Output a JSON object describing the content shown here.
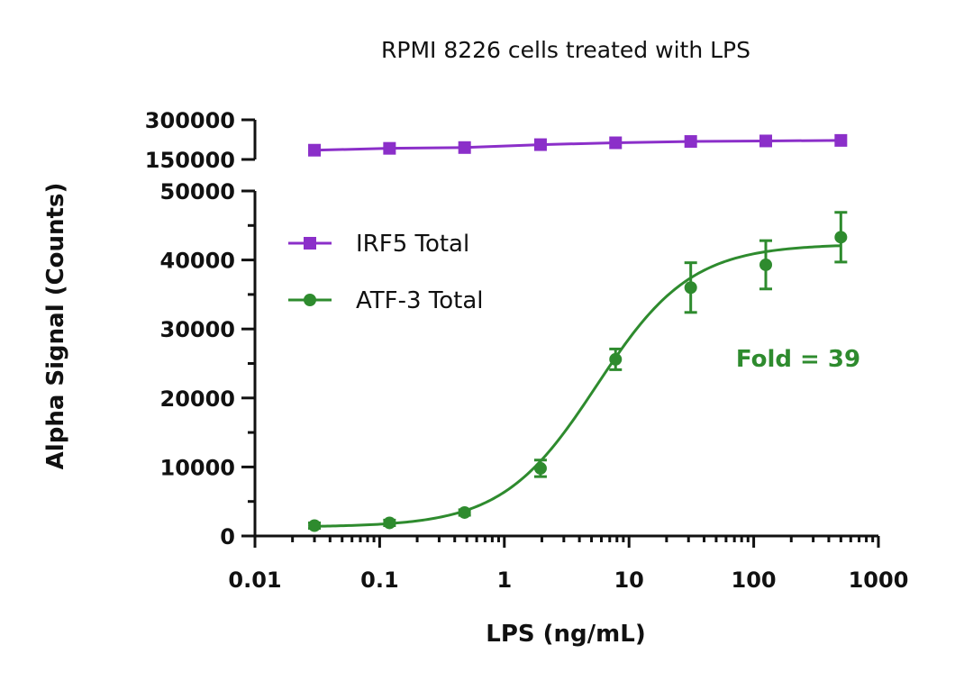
{
  "chart_data": {
    "type": "scatter",
    "title": "RPMI 8226 cells treated with LPS",
    "xlabel": "LPS (ng/mL)",
    "ylabel": "Alpha Signal (Counts)",
    "x_scale": "log",
    "xlim": [
      0.01,
      1000
    ],
    "x_ticks": [
      "0.01",
      "0.1",
      "1",
      "10",
      "100",
      "1000"
    ],
    "y_axis_segments": [
      {
        "ylim": [
          0,
          50000
        ],
        "ticks": [
          "0",
          "10000",
          "20000",
          "30000",
          "40000",
          "50000"
        ]
      },
      {
        "ylim": [
          150000,
          300000
        ],
        "ticks": [
          "150000",
          "300000"
        ]
      }
    ],
    "grid": false,
    "legend_position": "upper-left",
    "series": [
      {
        "name": "IRF5 Total",
        "color": "#8b2fc9",
        "marker": "square",
        "x": [
          0.03,
          0.12,
          0.48,
          1.95,
          7.8,
          31.25,
          125,
          500
        ],
        "y": [
          185000,
          192000,
          195000,
          206000,
          213000,
          218000,
          220000,
          222000
        ]
      },
      {
        "name": "ATF-3 Total",
        "color": "#2e8b2e",
        "marker": "circle",
        "x": [
          0.03,
          0.12,
          0.48,
          1.95,
          7.8,
          31.25,
          125,
          500
        ],
        "y": [
          1500,
          1900,
          3400,
          9800,
          25600,
          36000,
          39300,
          43300
        ],
        "error": [
          400,
          400,
          400,
          1200,
          1500,
          3600,
          3500,
          3600
        ],
        "fit_curve": "sigmoidal"
      }
    ],
    "annotations": [
      {
        "text": "Fold = 39",
        "color": "#2e8b2e"
      }
    ]
  }
}
